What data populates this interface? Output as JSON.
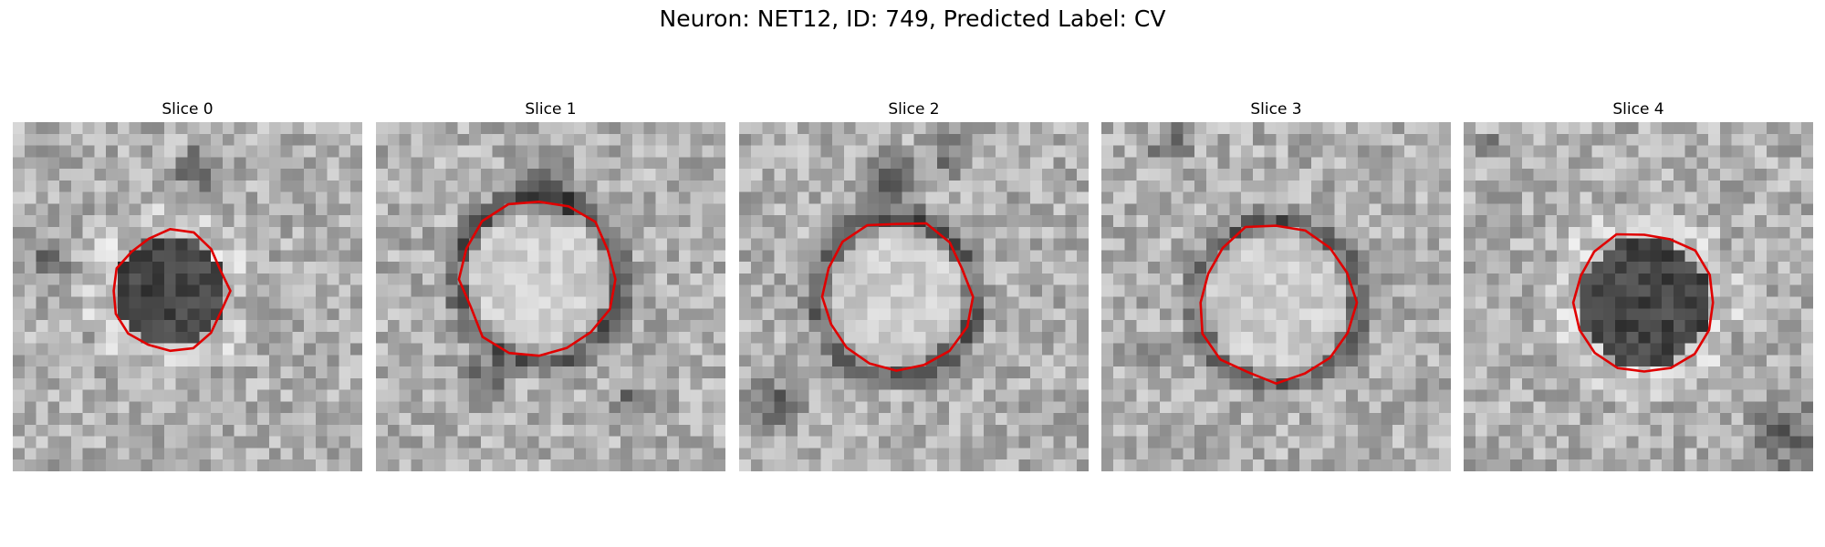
{
  "figure": {
    "title": "Neuron: NET12, ID: 749, Predicted Label: CV",
    "outline_color": "#e00000"
  },
  "slices": [
    {
      "title": "Slice 0",
      "dark_center": true
    },
    {
      "title": "Slice 1",
      "dark_center": false
    },
    {
      "title": "Slice 2",
      "dark_center": false
    },
    {
      "title": "Slice 3",
      "dark_center": false
    },
    {
      "title": "Slice 4",
      "dark_center": true
    }
  ]
}
